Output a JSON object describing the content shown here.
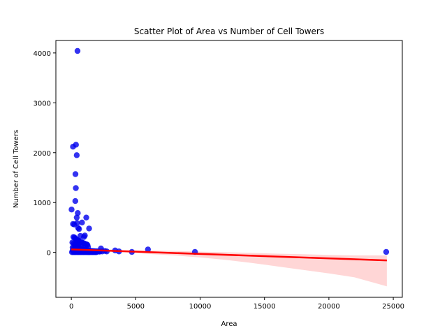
{
  "chart_data": {
    "type": "scatter",
    "title": "Scatter Plot of Area vs Number of Cell Towers",
    "xlabel": "Area",
    "ylabel": "Number of Cell Towers",
    "xlim": [
      -1200,
      25700
    ],
    "ylim": [
      -900,
      4250
    ],
    "xticks": [
      0,
      5000,
      10000,
      15000,
      20000,
      25000
    ],
    "yticks": [
      0,
      1000,
      2000,
      3000,
      4000
    ],
    "grid": false,
    "legend": "none",
    "point_color": "#0000ee",
    "fit_line_color": "#ff0000",
    "confidence_band_color": "#ffcccc",
    "regression": {
      "x": [
        0,
        24500
      ],
      "y": [
        60,
        -160
      ]
    },
    "confidence_band": {
      "x": [
        0,
        1000,
        2000,
        3000,
        4000,
        5000,
        6000,
        8000,
        10000,
        12000,
        14000,
        16000,
        18000,
        20000,
        22000,
        24500
      ],
      "lower": [
        30,
        30,
        20,
        15,
        5,
        -10,
        -30,
        -60,
        -100,
        -150,
        -210,
        -280,
        -350,
        -420,
        -500,
        -680
      ],
      "upper": [
        90,
        80,
        70,
        60,
        50,
        45,
        40,
        30,
        15,
        5,
        -10,
        -25,
        -35,
        -50,
        -60,
        -60
      ]
    },
    "series": [
      {
        "x": [
          480,
          360,
          130,
          420,
          320,
          350,
          310,
          20,
          420,
          500,
          1160,
          130,
          230,
          440,
          830,
          530,
          600,
          700,
          1050,
          980,
          1380,
          160,
          240,
          300,
          380,
          450,
          520,
          600,
          650,
          730,
          820,
          900,
          1000,
          1100,
          1200,
          1250,
          300,
          550,
          800,
          1050,
          1300,
          100,
          200,
          300,
          400,
          500,
          600,
          700,
          800,
          900,
          1000,
          1100,
          1200,
          1300,
          1400,
          1500,
          1600,
          1700,
          1800,
          1900,
          2000,
          2100,
          2200,
          2300,
          2400,
          2600,
          2750,
          3400,
          3700,
          4700,
          5950,
          9600,
          24450,
          50,
          150,
          250,
          350,
          450,
          550,
          650,
          750,
          850,
          950,
          1050,
          1150,
          1250,
          1350,
          1450,
          1550,
          1650,
          1750,
          1850,
          1950,
          100,
          200,
          300,
          400,
          500,
          600,
          700,
          800,
          900,
          1000,
          1200,
          1400,
          1600,
          1800,
          2000,
          2200,
          80,
          180,
          280,
          380,
          480,
          580,
          680
        ],
        "y": [
          4040,
          2160,
          2120,
          1950,
          1570,
          1290,
          1030,
          860,
          700,
          790,
          700,
          570,
          560,
          590,
          600,
          490,
          470,
          330,
          340,
          310,
          480,
          310,
          300,
          280,
          260,
          250,
          240,
          230,
          220,
          210,
          200,
          190,
          180,
          170,
          160,
          150,
          150,
          140,
          130,
          120,
          110,
          100,
          95,
          90,
          85,
          80,
          75,
          70,
          65,
          60,
          55,
          50,
          45,
          40,
          35,
          30,
          28,
          26,
          24,
          22,
          20,
          18,
          16,
          80,
          20,
          30,
          20,
          40,
          20,
          10,
          60,
          10,
          10,
          5,
          5,
          5,
          5,
          5,
          5,
          5,
          5,
          5,
          5,
          5,
          5,
          5,
          5,
          5,
          5,
          5,
          5,
          5,
          5,
          40,
          40,
          40,
          40,
          40,
          40,
          40,
          40,
          40,
          40,
          20,
          20,
          20,
          20,
          20,
          20,
          200,
          180,
          160,
          140,
          120,
          100,
          80
        ]
      }
    ]
  }
}
